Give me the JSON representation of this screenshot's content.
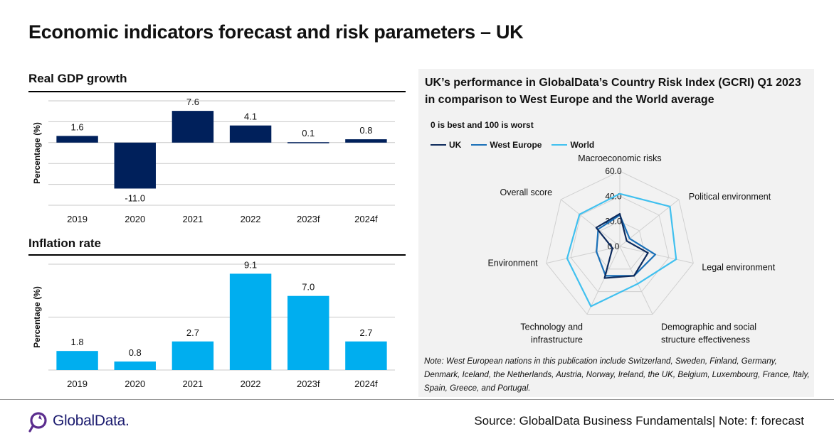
{
  "page": {
    "title": "Economic indicators forecast and risk parameters – UK",
    "source": "Source: GlobalData Business Fundamentals| Note: f: forecast",
    "logo_text": "GlobalData."
  },
  "colors": {
    "gdp_bar": "#00205b",
    "inflation_bar": "#00aeef",
    "uk": "#0d2a5c",
    "west_europe": "#1a70b8",
    "world": "#40c0ef"
  },
  "chart_data": [
    {
      "type": "bar",
      "title": "Real GDP growth",
      "ylabel": "Percentage (%)",
      "categories": [
        "2019",
        "2020",
        "2021",
        "2022",
        "2023f",
        "2024f"
      ],
      "values": [
        1.6,
        -11.0,
        7.6,
        4.1,
        0.1,
        0.8
      ],
      "value_labels": [
        "1.6",
        "-11.0",
        "7.6",
        "4.1",
        "0.1",
        "0.8"
      ],
      "ylim": [
        -15,
        10
      ],
      "grid": true
    },
    {
      "type": "bar",
      "title": "Inflation rate",
      "ylabel": "Percentage (%)",
      "categories": [
        "2019",
        "2020",
        "2021",
        "2022",
        "2023f",
        "2024f"
      ],
      "values": [
        1.8,
        0.8,
        2.7,
        9.1,
        7.0,
        2.7
      ],
      "value_labels": [
        "1.8",
        "0.8",
        "2.7",
        "9.1",
        "7.0",
        "2.7"
      ],
      "ylim": [
        0,
        10
      ],
      "grid": true
    },
    {
      "type": "radar",
      "title": "UK’s performance in GlobalData’s Country Risk Index (GCRI) Q1 2023 in comparison to West Europe and the World average",
      "subtitle": "0 is best and 100  is worst",
      "axes": [
        "Macroeconomic risks",
        "Political environment",
        "Legal environment",
        "Demographic and social structure effectiveness",
        "Technology and infrastructure",
        "Environment",
        "Overall score"
      ],
      "rlim": [
        0,
        60
      ],
      "ticks": [
        "0.0",
        "20.0",
        "40.0",
        "60.0"
      ],
      "series": [
        {
          "name": "UK",
          "values": [
            26,
            7,
            23,
            26,
            28,
            6,
            24
          ]
        },
        {
          "name": "West Europe",
          "values": [
            25,
            10,
            29,
            26,
            26,
            19,
            22
          ]
        },
        {
          "name": "World",
          "values": [
            42,
            51,
            46,
            33,
            53,
            43,
            41
          ]
        }
      ],
      "legend": "top-left",
      "note": "Note: West European nations in this publication include Switzerland, Sweden, Finland, Germany, Denmark, Iceland, the Netherlands, Austria, Norway, Ireland, the UK, Belgium, Luxembourg, France, Italy, Spain, Greece, and Portugal."
    }
  ]
}
